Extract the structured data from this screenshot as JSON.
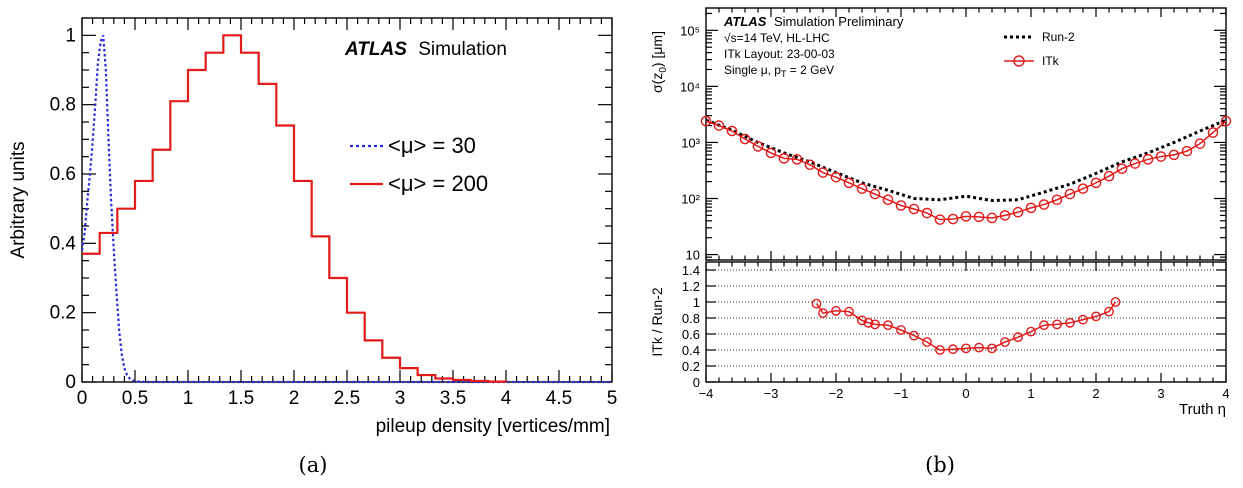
{
  "chart_data": [
    {
      "type": "line",
      "panel_label": "(a)",
      "experiment": "ATLAS",
      "experiment_suffix": "Simulation",
      "xlabel": "pileup density [vertices/mm]",
      "ylabel": "Arbitrary units",
      "xlim": [
        0,
        5
      ],
      "ylim": [
        0,
        1.05
      ],
      "x_ticks": [
        "0",
        "0.5",
        "1",
        "1.5",
        "2",
        "2.5",
        "3",
        "3.5",
        "4",
        "4.5",
        "5"
      ],
      "y_ticks": [
        "0",
        "0.2",
        "0.4",
        "0.6",
        "0.8",
        "1"
      ],
      "legend": "right",
      "series": [
        {
          "name": "<μ> = 30",
          "color": "#2a2adc",
          "style": "dotted",
          "x": [
            0,
            0.025,
            0.05,
            0.075,
            0.1,
            0.125,
            0.15,
            0.175,
            0.2,
            0.225,
            0.25,
            0.275,
            0.3,
            0.325,
            0.35,
            0.375,
            0.4,
            0.425,
            0.45,
            0.475,
            0.5,
            0.55,
            0.6,
            5.0
          ],
          "values": [
            0.38,
            0.43,
            0.52,
            0.6,
            0.69,
            0.8,
            0.92,
            0.98,
            1.0,
            0.9,
            0.7,
            0.52,
            0.38,
            0.26,
            0.15,
            0.08,
            0.04,
            0.02,
            0.01,
            0.005,
            0.002,
            0.001,
            0,
            0
          ]
        },
        {
          "name": "<μ> = 200",
          "color": "#e21a1a",
          "style": "step",
          "bin_edges": [
            0,
            0.1667,
            0.3333,
            0.5,
            0.6667,
            0.8333,
            1.0,
            1.1667,
            1.3333,
            1.5,
            1.6667,
            1.8333,
            2.0,
            2.1667,
            2.3333,
            2.5,
            2.6667,
            2.8333,
            3.0,
            3.1667,
            3.3333,
            3.5,
            3.6667,
            3.8333,
            4.0
          ],
          "values": [
            0.37,
            0.43,
            0.5,
            0.58,
            0.67,
            0.81,
            0.9,
            0.95,
            1.0,
            0.95,
            0.86,
            0.74,
            0.58,
            0.42,
            0.3,
            0.2,
            0.12,
            0.07,
            0.04,
            0.02,
            0.01,
            0.006,
            0.003,
            0.001
          ]
        }
      ]
    },
    {
      "type": "line",
      "panel_label": "(b)",
      "experiment": "ATLAS",
      "experiment_suffix": "Simulation Preliminary",
      "info_lines": [
        "√s=14 TeV, HL-LHC",
        "ITk Layout: 23-00-03",
        "Single μ, p_T = 2 GeV"
      ],
      "xlabel": "Truth η",
      "x_ticks": [
        "−4",
        "−3",
        "−2",
        "−1",
        "0",
        "1",
        "2",
        "3",
        "4"
      ],
      "xlim": [
        -4,
        4
      ],
      "top": {
        "ylabel": "σ(z_0) [μm]",
        "yscale": "log",
        "ylim": [
          8,
          250000
        ],
        "y_ticks": [
          "10",
          "10²",
          "10³",
          "10⁴",
          "10⁵"
        ],
        "legend": "top-right",
        "series": [
          {
            "name": "Run-2",
            "color": "#000000",
            "style": "dotted",
            "x": [
              -4.0,
              -3.6,
              -3.2,
              -2.8,
              -2.4,
              -2.0,
              -1.6,
              -1.2,
              -0.8,
              -0.4,
              0.0,
              0.4,
              0.8,
              1.2,
              1.6,
              2.0,
              2.4,
              2.8,
              3.2,
              3.6,
              4.0
            ],
            "values": [
              2500,
              1650,
              1000,
              650,
              450,
              290,
              190,
              140,
              100,
              95,
              110,
              92,
              95,
              130,
              180,
              280,
              450,
              650,
              1000,
              1600,
              2500
            ]
          },
          {
            "name": "ITk",
            "color": "#e21a1a",
            "style": "markers",
            "x": [
              -4.0,
              -3.8,
              -3.6,
              -3.4,
              -3.2,
              -3.0,
              -2.8,
              -2.6,
              -2.4,
              -2.2,
              -2.0,
              -1.8,
              -1.6,
              -1.4,
              -1.2,
              -1.0,
              -0.8,
              -0.6,
              -0.4,
              -0.2,
              0.0,
              0.2,
              0.4,
              0.6,
              0.8,
              1.0,
              1.2,
              1.4,
              1.6,
              1.8,
              2.0,
              2.2,
              2.4,
              2.6,
              2.8,
              3.0,
              3.2,
              3.4,
              3.6,
              3.8,
              4.0
            ],
            "values": [
              2400,
              2000,
              1600,
              1150,
              850,
              650,
              520,
              500,
              400,
              290,
              240,
              190,
              150,
              120,
              95,
              75,
              65,
              55,
              42,
              43,
              48,
              47,
              45,
              50,
              57,
              68,
              78,
              95,
              120,
              150,
              190,
              250,
              340,
              420,
              500,
              560,
              600,
              700,
              950,
              1500,
              2400
            ]
          }
        ]
      },
      "bottom": {
        "ylabel": "ITk / Run-2",
        "ylim": [
          0,
          1.5
        ],
        "y_ticks": [
          "0",
          "0.2",
          "0.4",
          "0.6",
          "0.8",
          "1",
          "1.2",
          "1.4"
        ],
        "grid": true,
        "series": [
          {
            "name": "ITk / Run-2",
            "color": "#e21a1a",
            "style": "markers",
            "x": [
              -2.3,
              -2.2,
              -2.0,
              -1.8,
              -1.6,
              -1.5,
              -1.4,
              -1.2,
              -1.0,
              -0.8,
              -0.6,
              -0.4,
              -0.2,
              0.0,
              0.2,
              0.4,
              0.6,
              0.8,
              1.0,
              1.2,
              1.4,
              1.6,
              1.8,
              2.0,
              2.2,
              2.3
            ],
            "values": [
              0.98,
              0.86,
              0.89,
              0.88,
              0.77,
              0.74,
              0.72,
              0.71,
              0.65,
              0.58,
              0.5,
              0.4,
              0.41,
              0.42,
              0.43,
              0.42,
              0.5,
              0.56,
              0.63,
              0.71,
              0.72,
              0.74,
              0.78,
              0.82,
              0.88,
              1.0
            ]
          }
        ]
      }
    }
  ]
}
